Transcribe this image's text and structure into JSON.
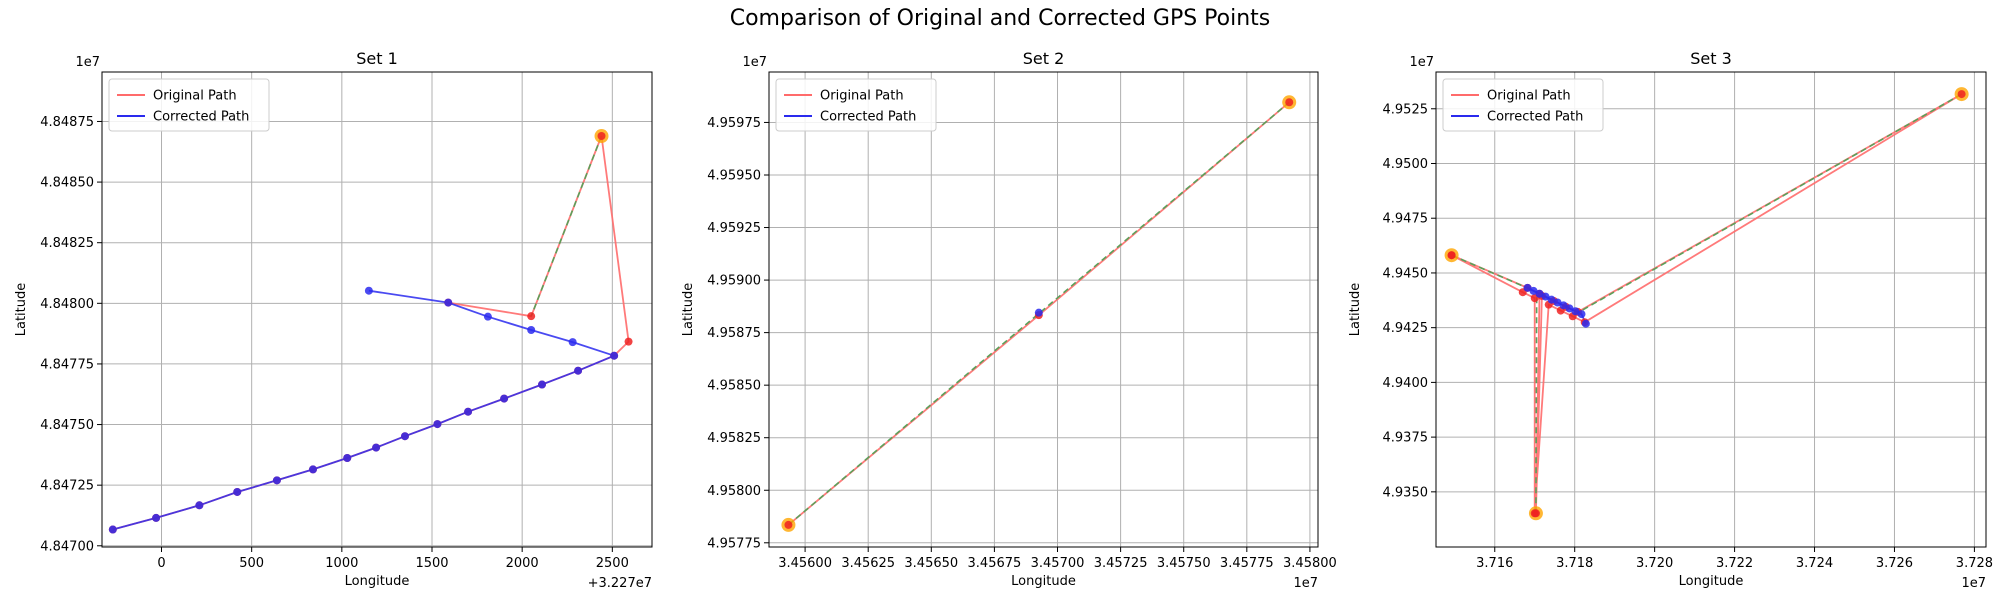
{
  "figure": {
    "title": "Comparison of Original and Corrected GPS Points"
  },
  "legend_labels": {
    "original": "Original Path",
    "corrected": "Corrected Path"
  },
  "colors": {
    "original": "#ff6b6b",
    "corrected": "#2a2aee",
    "endpoint": "#ffa500",
    "guide": "#5aa05a",
    "grid": "#b0b0b0"
  },
  "chart_data": [
    {
      "type": "line",
      "title": "Set 1",
      "xlabel": "Longitude",
      "ylabel": "Latitude",
      "x_offset_text": "+3.227e7",
      "y_exponent_text": "1e7",
      "xlim": [
        -330,
        2720
      ],
      "ylim": [
        4846995,
        4848954
      ],
      "xticks": [
        0,
        500,
        1000,
        1500,
        2000,
        2500
      ],
      "xtick_labels": [
        "0",
        "500",
        "1000",
        "1500",
        "2000",
        "2500"
      ],
      "yticks": [
        4847000,
        4847250,
        4847500,
        4847750,
        4848000,
        4848250,
        4848500,
        4848750
      ],
      "ytick_labels": [
        "4.84700",
        "4.84725",
        "4.84750",
        "4.84775",
        "4.84800",
        "4.84825",
        "4.84850",
        "4.84875"
      ],
      "grid": true,
      "legend": "top-left",
      "original_path": [
        [
          -270,
          4847067
        ],
        [
          -30,
          4847115
        ],
        [
          210,
          4847167
        ],
        [
          420,
          4847222
        ],
        [
          640,
          4847270
        ],
        [
          840,
          4847315
        ],
        [
          1030,
          4847362
        ],
        [
          1190,
          4847405
        ],
        [
          1350,
          4847452
        ],
        [
          1530,
          4847502
        ],
        [
          1700,
          4847553
        ],
        [
          1900,
          4847607
        ],
        [
          2110,
          4847665
        ],
        [
          2310,
          4847722
        ],
        [
          2510,
          4847784
        ],
        [
          2590,
          4847842
        ],
        [
          2440,
          4848690
        ],
        [
          2050,
          4847947
        ],
        [
          1590,
          4848003
        ]
      ],
      "corrected_path": [
        [
          -270,
          4847067
        ],
        [
          -30,
          4847115
        ],
        [
          210,
          4847167
        ],
        [
          420,
          4847222
        ],
        [
          640,
          4847270
        ],
        [
          840,
          4847315
        ],
        [
          1030,
          4847362
        ],
        [
          1190,
          4847405
        ],
        [
          1350,
          4847452
        ],
        [
          1530,
          4847502
        ],
        [
          1700,
          4847553
        ],
        [
          1900,
          4847607
        ],
        [
          2110,
          4847665
        ],
        [
          2310,
          4847722
        ],
        [
          2510,
          4847784
        ],
        [
          2280,
          4847840
        ],
        [
          2050,
          4847890
        ],
        [
          1810,
          4847945
        ],
        [
          1590,
          4848003
        ],
        [
          1150,
          4848052
        ]
      ],
      "original_only_points": [
        [
          2590,
          4847842
        ],
        [
          2050,
          4847947
        ]
      ],
      "guide_segments": [
        [
          [
            2440,
            4848690
          ],
          [
            2050,
            4847947
          ]
        ]
      ],
      "endpoints": [
        [
          2440,
          4848690
        ]
      ]
    },
    {
      "type": "line",
      "title": "Set 2",
      "xlabel": "Longitude",
      "ylabel": "Latitude",
      "x_offset_text": "1e7",
      "y_exponent_text": "1e7",
      "xlim": [
        3.455857,
        3.458032
      ],
      "ylim": [
        4.95773,
        4.95999
      ],
      "xticks": [
        3.456,
        3.45625,
        3.4565,
        3.45675,
        3.457,
        3.45725,
        3.4575,
        3.45775,
        3.458
      ],
      "xtick_labels": [
        "3.45600",
        "3.45625",
        "3.45650",
        "3.45675",
        "3.45700",
        "3.45725",
        "3.45750",
        "3.45775",
        "3.45800"
      ],
      "yticks": [
        4.95775,
        4.958,
        4.95825,
        4.9585,
        4.95875,
        4.959,
        4.95925,
        4.9595,
        4.95975
      ],
      "ytick_labels": [
        "4.95775",
        "4.95800",
        "4.95825",
        "4.95850",
        "4.95875",
        "4.95900",
        "4.95925",
        "4.95950",
        "4.95975"
      ],
      "grid": true,
      "legend": "top-left",
      "original_path": [
        [
          3.455934,
          4.957835
        ],
        [
          3.456926,
          4.958833
        ],
        [
          3.457918,
          4.959846
        ]
      ],
      "corrected_path": [
        [
          3.456926,
          4.958845
        ]
      ],
      "original_only_points": [
        [
          3.456926,
          4.958833
        ]
      ],
      "guide_segments": [
        [
          [
            3.455934,
            4.957835
          ],
          [
            3.457918,
            4.959846
          ]
        ]
      ],
      "endpoints": [
        [
          3.455934,
          4.957835
        ],
        [
          3.457918,
          4.959846
        ]
      ]
    },
    {
      "type": "line",
      "title": "Set 3",
      "xlabel": "Longitude",
      "ylabel": "Latitude",
      "x_offset_text": "1e7",
      "y_exponent_text": "1e7",
      "xlim": [
        3.71453,
        3.72829
      ],
      "ylim": [
        4.93248,
        4.95418
      ],
      "xticks": [
        3.716,
        3.718,
        3.72,
        3.722,
        3.724,
        3.726,
        3.728
      ],
      "xtick_labels": [
        "3.716",
        "3.718",
        "3.720",
        "3.722",
        "3.724",
        "3.726",
        "3.728"
      ],
      "yticks": [
        4.935,
        4.9375,
        4.94,
        4.9425,
        4.945,
        4.9475,
        4.95,
        4.9525
      ],
      "ytick_labels": [
        "4.9350",
        "4.9375",
        "4.9400",
        "4.9425",
        "4.9450",
        "4.9475",
        "4.9500",
        "4.9525"
      ],
      "grid": true,
      "legend": "top-left",
      "original_path": [
        [
          3.71492,
          4.94581
        ],
        [
          3.71682,
          4.94432
        ],
        [
          3.71712,
          4.94405
        ],
        [
          3.71703,
          4.93402
        ],
        [
          3.71718,
          4.94395
        ],
        [
          3.71748,
          4.94372
        ],
        [
          3.71778,
          4.94345
        ],
        [
          3.71808,
          4.94322
        ],
        [
          3.72768,
          4.95317
        ],
        [
          3.71825,
          4.94275
        ],
        [
          3.71795,
          4.94302
        ],
        [
          3.71765,
          4.94328
        ],
        [
          3.71735,
          4.94355
        ],
        [
          3.717,
          4.93402
        ],
        [
          3.717,
          4.94385
        ],
        [
          3.7167,
          4.94412
        ],
        [
          3.71492,
          4.94581
        ]
      ],
      "corrected_path": [
        [
          3.71682,
          4.94432
        ],
        [
          3.71697,
          4.94418
        ],
        [
          3.71712,
          4.94405
        ],
        [
          3.71727,
          4.94392
        ],
        [
          3.71742,
          4.94378
        ],
        [
          3.71757,
          4.94365
        ],
        [
          3.71772,
          4.94352
        ],
        [
          3.71787,
          4.94338
        ],
        [
          3.71802,
          4.94325
        ],
        [
          3.71817,
          4.94312
        ],
        [
          3.71828,
          4.94268
        ]
      ],
      "original_only_points": [],
      "guide_segments": [
        [
          [
            3.71492,
            4.94581
          ],
          [
            3.7169,
            4.94425
          ]
        ],
        [
          [
            3.71703,
            4.93402
          ],
          [
            3.71705,
            4.94398
          ]
        ],
        [
          [
            3.72768,
            4.95317
          ],
          [
            3.718,
            4.9431
          ]
        ]
      ],
      "endpoints": [
        [
          3.71492,
          4.94581
        ],
        [
          3.71703,
          4.93402
        ],
        [
          3.72768,
          4.95317
        ]
      ]
    }
  ]
}
